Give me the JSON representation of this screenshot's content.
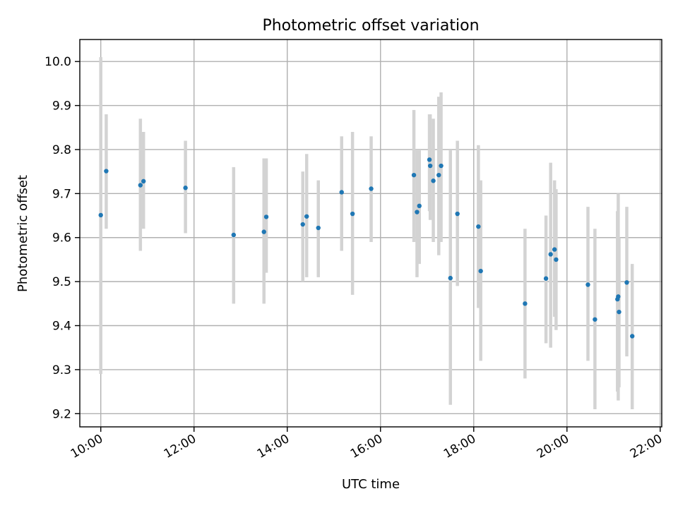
{
  "chart_data": {
    "type": "scatter",
    "title": "Photometric offset variation",
    "xlabel": "UTC time",
    "ylabel": "Photometric offset",
    "x_scale": "time",
    "xlim": [
      "09:33",
      "22:02"
    ],
    "ylim": [
      9.17,
      10.05
    ],
    "xticks": [
      "10:00",
      "12:00",
      "14:00",
      "16:00",
      "18:00",
      "20:00",
      "22:00"
    ],
    "yticks": [
      9.2,
      9.3,
      9.4,
      9.5,
      9.6,
      9.7,
      9.8,
      9.9,
      10.0
    ],
    "ytick_labels": [
      "9.2",
      "9.3",
      "9.4",
      "9.5",
      "9.6",
      "9.7",
      "9.8",
      "9.9",
      "10.0"
    ],
    "grid": true,
    "legend": "none",
    "marker_color": "#1f77b4",
    "errorbar_color": "#d3d3d3",
    "series": [
      {
        "points": [
          {
            "x": "10:00",
            "y": 9.651,
            "ylow": 9.29,
            "yhigh": 10.01
          },
          {
            "x": "10:07",
            "y": 9.751,
            "ylow": 9.62,
            "yhigh": 9.88
          },
          {
            "x": "10:51",
            "y": 9.719,
            "ylow": 9.57,
            "yhigh": 9.87
          },
          {
            "x": "10:55",
            "y": 9.728,
            "ylow": 9.62,
            "yhigh": 9.84
          },
          {
            "x": "11:49",
            "y": 9.713,
            "ylow": 9.61,
            "yhigh": 9.82
          },
          {
            "x": "12:51",
            "y": 9.606,
            "ylow": 9.45,
            "yhigh": 9.76
          },
          {
            "x": "13:30",
            "y": 9.613,
            "ylow": 9.45,
            "yhigh": 9.78
          },
          {
            "x": "13:33",
            "y": 9.647,
            "ylow": 9.52,
            "yhigh": 9.78
          },
          {
            "x": "14:20",
            "y": 9.63,
            "ylow": 9.5,
            "yhigh": 9.75
          },
          {
            "x": "14:25",
            "y": 9.648,
            "ylow": 9.51,
            "yhigh": 9.79
          },
          {
            "x": "14:40",
            "y": 9.622,
            "ylow": 9.51,
            "yhigh": 9.73
          },
          {
            "x": "15:10",
            "y": 9.703,
            "ylow": 9.57,
            "yhigh": 9.83
          },
          {
            "x": "15:24",
            "y": 9.654,
            "ylow": 9.47,
            "yhigh": 9.84
          },
          {
            "x": "15:48",
            "y": 9.711,
            "ylow": 9.59,
            "yhigh": 9.83
          },
          {
            "x": "16:43",
            "y": 9.742,
            "ylow": 9.59,
            "yhigh": 9.89
          },
          {
            "x": "16:47",
            "y": 9.658,
            "ylow": 9.51,
            "yhigh": 9.8
          },
          {
            "x": "16:50",
            "y": 9.672,
            "ylow": 9.54,
            "yhigh": 9.8
          },
          {
            "x": "17:03",
            "y": 9.777,
            "ylow": 9.66,
            "yhigh": 9.88
          },
          {
            "x": "17:04",
            "y": 9.763,
            "ylow": 9.64,
            "yhigh": 9.88
          },
          {
            "x": "17:08",
            "y": 9.729,
            "ylow": 9.59,
            "yhigh": 9.87
          },
          {
            "x": "17:15",
            "y": 9.742,
            "ylow": 9.56,
            "yhigh": 9.92
          },
          {
            "x": "17:18",
            "y": 9.763,
            "ylow": 9.59,
            "yhigh": 9.93
          },
          {
            "x": "17:30",
            "y": 9.508,
            "ylow": 9.22,
            "yhigh": 9.8
          },
          {
            "x": "17:39",
            "y": 9.654,
            "ylow": 9.49,
            "yhigh": 9.82
          },
          {
            "x": "18:06",
            "y": 9.625,
            "ylow": 9.44,
            "yhigh": 9.81
          },
          {
            "x": "18:09",
            "y": 9.524,
            "ylow": 9.32,
            "yhigh": 9.73
          },
          {
            "x": "19:06",
            "y": 9.45,
            "ylow": 9.28,
            "yhigh": 9.62
          },
          {
            "x": "19:33",
            "y": 9.507,
            "ylow": 9.36,
            "yhigh": 9.65
          },
          {
            "x": "19:39",
            "y": 9.562,
            "ylow": 9.35,
            "yhigh": 9.77
          },
          {
            "x": "19:44",
            "y": 9.573,
            "ylow": 9.42,
            "yhigh": 9.73
          },
          {
            "x": "19:46",
            "y": 9.55,
            "ylow": 9.39,
            "yhigh": 9.71
          },
          {
            "x": "20:27",
            "y": 9.493,
            "ylow": 9.32,
            "yhigh": 9.67
          },
          {
            "x": "20:36",
            "y": 9.414,
            "ylow": 9.21,
            "yhigh": 9.62
          },
          {
            "x": "21:05",
            "y": 9.46,
            "ylow": 9.25,
            "yhigh": 9.66
          },
          {
            "x": "21:06",
            "y": 9.466,
            "ylow": 9.23,
            "yhigh": 9.7
          },
          {
            "x": "21:07",
            "y": 9.431,
            "ylow": 9.26,
            "yhigh": 9.6
          },
          {
            "x": "21:17",
            "y": 9.498,
            "ylow": 9.33,
            "yhigh": 9.67
          },
          {
            "x": "21:24",
            "y": 9.376,
            "ylow": 9.21,
            "yhigh": 9.54
          }
        ]
      }
    ]
  }
}
